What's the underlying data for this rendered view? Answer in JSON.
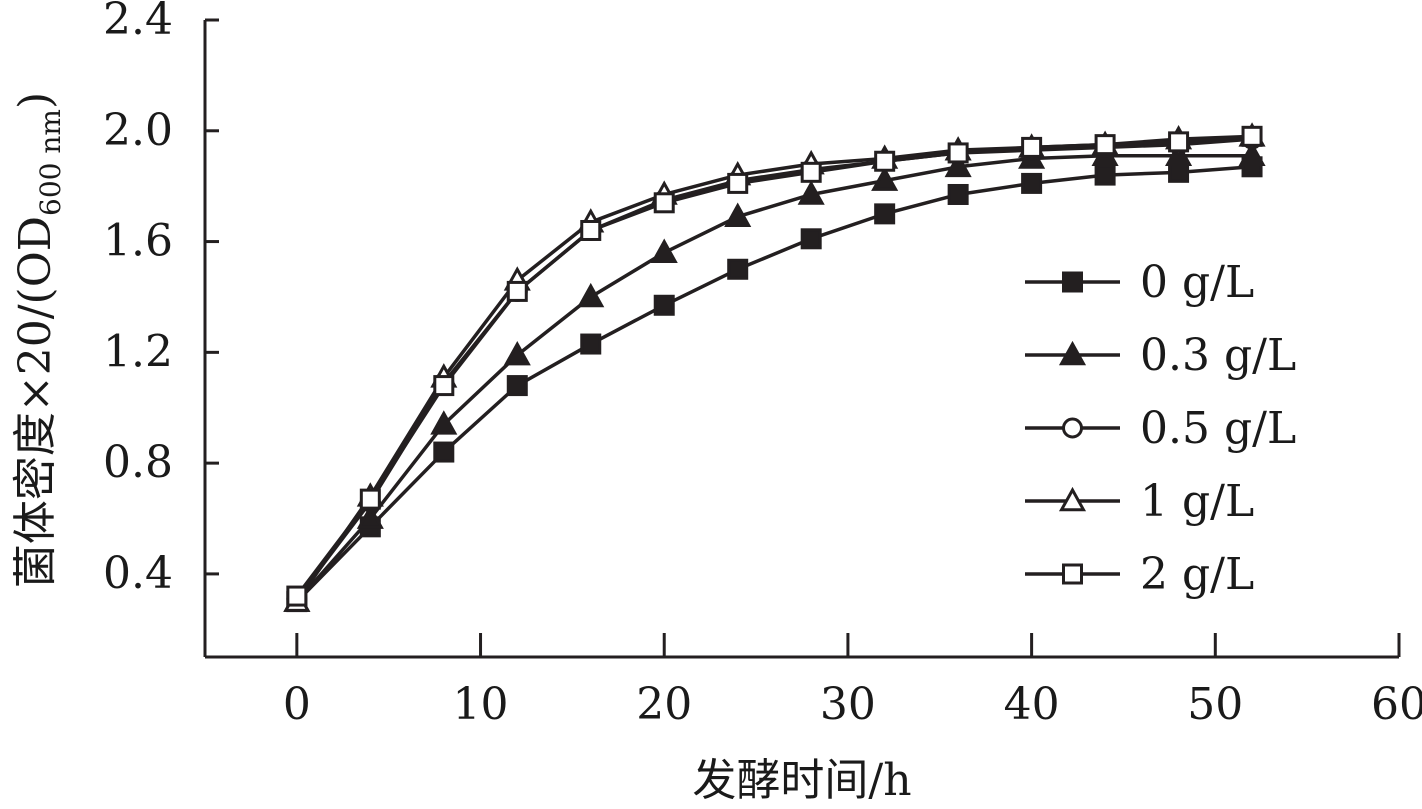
{
  "chart_data": {
    "type": "line",
    "xlabel": "发酵时间/h",
    "ylabel": {
      "main": "菌体密度×20/(OD",
      "sub": "600 nm",
      "close": ")"
    },
    "xlim": [
      -5,
      60
    ],
    "ylim": [
      0.1,
      2.4
    ],
    "xticks": [
      0,
      10,
      20,
      30,
      40,
      50,
      60
    ],
    "yticks": [
      0.4,
      0.8,
      1.2,
      1.6,
      2.0,
      2.4
    ],
    "grid": false,
    "legend_position": "right",
    "line_color": "#231f20",
    "x": [
      0,
      4,
      8,
      12,
      16,
      20,
      24,
      28,
      32,
      36,
      40,
      44,
      48,
      52
    ],
    "series": [
      {
        "name": "0 g/L",
        "marker": "square-filled",
        "values": [
          0.3,
          0.57,
          0.84,
          1.08,
          1.23,
          1.37,
          1.5,
          1.61,
          1.7,
          1.77,
          1.81,
          1.84,
          1.85,
          1.87
        ]
      },
      {
        "name": "0.3 g/L",
        "marker": "triangle-filled",
        "values": [
          0.3,
          0.6,
          0.94,
          1.19,
          1.4,
          1.56,
          1.69,
          1.77,
          1.82,
          1.87,
          1.9,
          1.91,
          1.91,
          1.91
        ]
      },
      {
        "name": "0.5 g/L",
        "marker": "circle-open",
        "values": [
          0.31,
          0.66,
          1.09,
          1.42,
          1.64,
          1.75,
          1.82,
          1.86,
          1.89,
          1.92,
          1.93,
          1.94,
          1.95,
          1.97
        ]
      },
      {
        "name": "1 g/L",
        "marker": "triangle-open",
        "values": [
          0.3,
          0.68,
          1.11,
          1.46,
          1.67,
          1.77,
          1.84,
          1.88,
          1.9,
          1.93,
          1.94,
          1.95,
          1.97,
          1.98
        ]
      },
      {
        "name": "2 g/L",
        "marker": "square-open",
        "values": [
          0.32,
          0.67,
          1.08,
          1.42,
          1.64,
          1.74,
          1.81,
          1.85,
          1.89,
          1.92,
          1.94,
          1.95,
          1.96,
          1.98
        ]
      }
    ]
  }
}
